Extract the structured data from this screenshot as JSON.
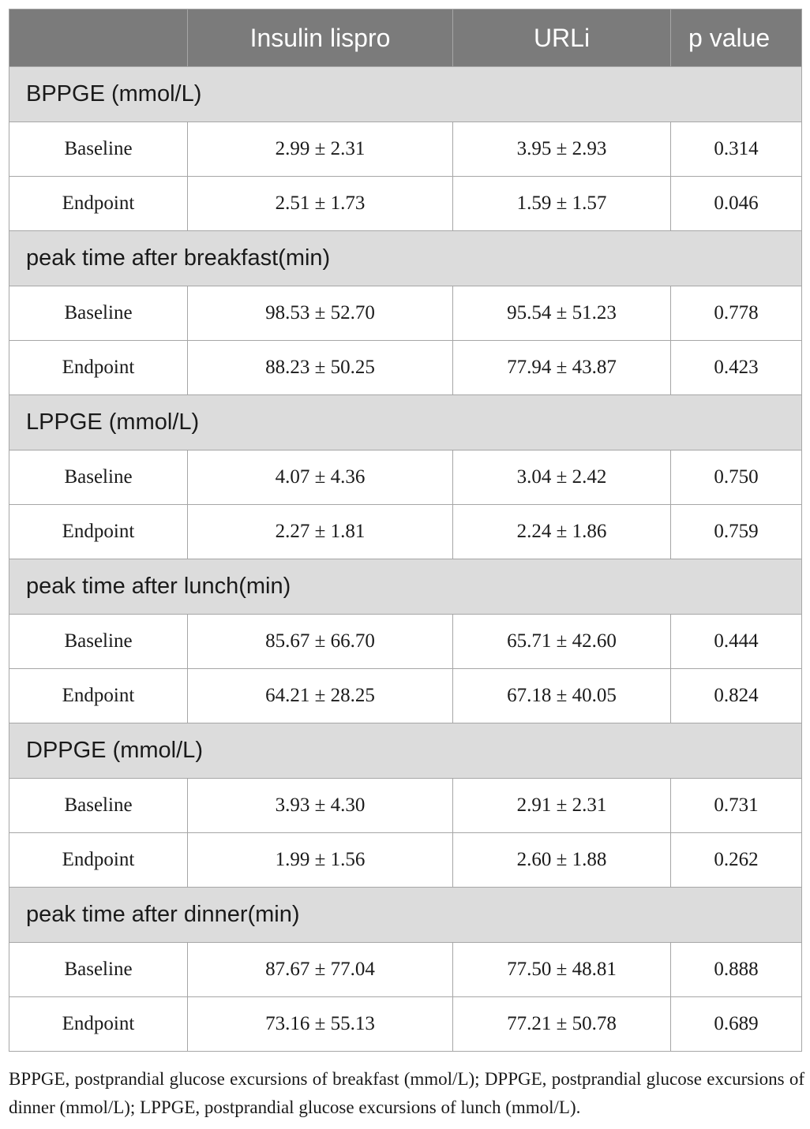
{
  "header": {
    "col0": "",
    "col1": "Insulin lispro",
    "col2": "URLi",
    "col3": "p value"
  },
  "sections": [
    {
      "title": "BPPGE (mmol/L)",
      "rows": [
        {
          "label": "Baseline",
          "lispro": "2.99 ± 2.31",
          "urli": "3.95 ± 2.93",
          "p": "0.314"
        },
        {
          "label": "Endpoint",
          "lispro": "2.51 ± 1.73",
          "urli": "1.59 ± 1.57",
          "p": "0.046"
        }
      ]
    },
    {
      "title": "peak time after breakfast(min)",
      "rows": [
        {
          "label": "Baseline",
          "lispro": "98.53 ± 52.70",
          "urli": "95.54 ± 51.23",
          "p": "0.778"
        },
        {
          "label": "Endpoint",
          "lispro": "88.23 ± 50.25",
          "urli": "77.94 ± 43.87",
          "p": "0.423"
        }
      ]
    },
    {
      "title": "LPPGE (mmol/L)",
      "rows": [
        {
          "label": "Baseline",
          "lispro": "4.07 ± 4.36",
          "urli": "3.04 ± 2.42",
          "p": "0.750"
        },
        {
          "label": "Endpoint",
          "lispro": "2.27 ± 1.81",
          "urli": "2.24 ± 1.86",
          "p": "0.759"
        }
      ]
    },
    {
      "title": "peak time after lunch(min)",
      "rows": [
        {
          "label": "Baseline",
          "lispro": "85.67 ± 66.70",
          "urli": "65.71 ± 42.60",
          "p": "0.444"
        },
        {
          "label": "Endpoint",
          "lispro": "64.21 ± 28.25",
          "urli": "67.18 ± 40.05",
          "p": "0.824"
        }
      ]
    },
    {
      "title": "DPPGE (mmol/L)",
      "rows": [
        {
          "label": "Baseline",
          "lispro": "3.93 ± 4.30",
          "urli": "2.91 ± 2.31",
          "p": "0.731"
        },
        {
          "label": "Endpoint",
          "lispro": "1.99 ± 1.56",
          "urli": "2.60 ± 1.88",
          "p": "0.262"
        }
      ]
    },
    {
      "title": "peak time after dinner(min)",
      "rows": [
        {
          "label": "Baseline",
          "lispro": "87.67 ± 77.04",
          "urli": "77.50 ± 48.81",
          "p": "0.888"
        },
        {
          "label": "Endpoint",
          "lispro": "73.16 ± 55.13",
          "urli": "77.21 ± 50.78",
          "p": "0.689"
        }
      ]
    }
  ],
  "footnote": "BPPGE, postprandial glucose excursions of breakfast (mmol/L); DPPGE, postprandial glucose excursions of dinner (mmol/L); LPPGE, postprandial glucose excursions of lunch (mmol/L).",
  "colors": {
    "header_bg": "#7b7b7b",
    "section_bg": "#dcdcdc",
    "border": "#a6a6a6"
  }
}
